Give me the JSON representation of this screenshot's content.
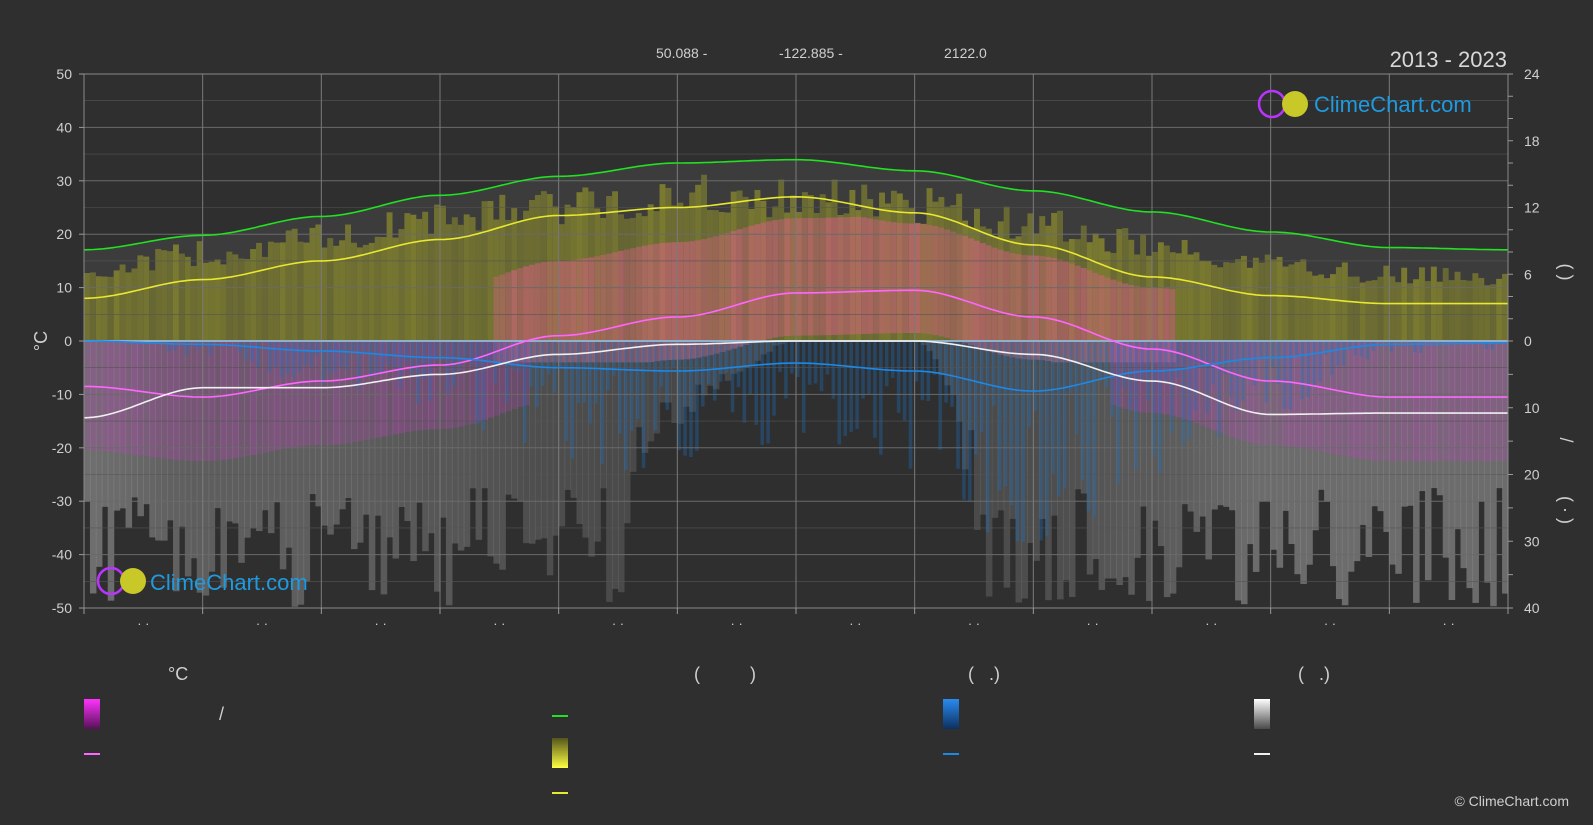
{
  "header": {
    "lat": "50.088 -",
    "lon": "-122.885 -",
    "elev": "2122.0",
    "years": "2013 - 2023"
  },
  "logo": {
    "text": "ClimeChart.com"
  },
  "copyright": "© ClimeChart.com",
  "colors": {
    "daylight": "#22e022",
    "sunshine": "#e8e830",
    "max_temp": "#e8e830",
    "mean_temp": "#ff66ff",
    "rain": "#1e88e5",
    "snow": "#f0f0f0",
    "grid": "#6a6a6a",
    "background": "#2f2f2f",
    "logo_text": "#1e9be0"
  },
  "legend": {
    "temp_head": "°C",
    "sun_head": "(          )",
    "rain_head": "(   .)",
    "snow_head": "(   .)",
    "temp_slash": "/"
  },
  "chart_data": {
    "type": "area",
    "axes": {
      "left": {
        "label": "°C",
        "range": [
          -50,
          50
        ],
        "ticks": [
          "50",
          "40",
          "30",
          "20",
          "10",
          "0",
          "-10",
          "-20",
          "-30",
          "-40",
          "-50"
        ]
      },
      "right_top": {
        "range": [
          0,
          24
        ],
        "ticks": [
          "24",
          "18",
          "12",
          "6",
          "0"
        ]
      },
      "right_bottom": {
        "range": [
          0,
          40
        ],
        "ticks": [
          "10",
          "20",
          "30",
          "40"
        ]
      },
      "right_labels": [
        "(  )",
        "/",
        "(  ·  )"
      ]
    },
    "x": {
      "months": 12,
      "tick_labels": [
        "· ·",
        "· ·",
        "· ·",
        "· ·",
        "· ·",
        "· ·",
        "· ·",
        "· ·",
        "· ·",
        "· ·",
        "· ·",
        "· ·"
      ]
    },
    "series": [
      {
        "key": "daylight",
        "axis": "hours",
        "values": [
          8.2,
          9.5,
          11.2,
          13.1,
          14.8,
          16.0,
          16.3,
          15.3,
          13.5,
          11.6,
          9.8,
          8.4,
          8.2
        ]
      },
      {
        "key": "sunshine",
        "axis": "hours",
        "values": [
          7.0,
          9.0,
          10.5,
          12.5,
          14.0,
          15.0,
          14.8,
          14.0,
          12.0,
          10.0,
          8.0,
          6.8,
          6.6
        ]
      },
      {
        "key": "max_temp",
        "axis": "°C",
        "values": [
          8,
          11.5,
          15,
          19,
          23.5,
          25,
          27,
          24,
          18,
          12,
          8.5,
          7,
          7
        ]
      },
      {
        "key": "mean_temp",
        "axis": "°C",
        "values": [
          -8.5,
          -10.5,
          -7.5,
          -4.5,
          1.0,
          4.5,
          9.0,
          9.5,
          4.5,
          -1.5,
          -7.5,
          -10.5,
          -10.5
        ]
      },
      {
        "key": "rain",
        "axis": "mm",
        "values": [
          0,
          0.5,
          1.5,
          2.5,
          4,
          4.5,
          3.3,
          4.5,
          7.5,
          4.5,
          2.5,
          0.5,
          0.3
        ]
      },
      {
        "key": "snow",
        "axis": "mm",
        "values": [
          11.5,
          7,
          7,
          5,
          2,
          0.5,
          0,
          0,
          2,
          6,
          11,
          10.8,
          10.8
        ]
      }
    ]
  }
}
